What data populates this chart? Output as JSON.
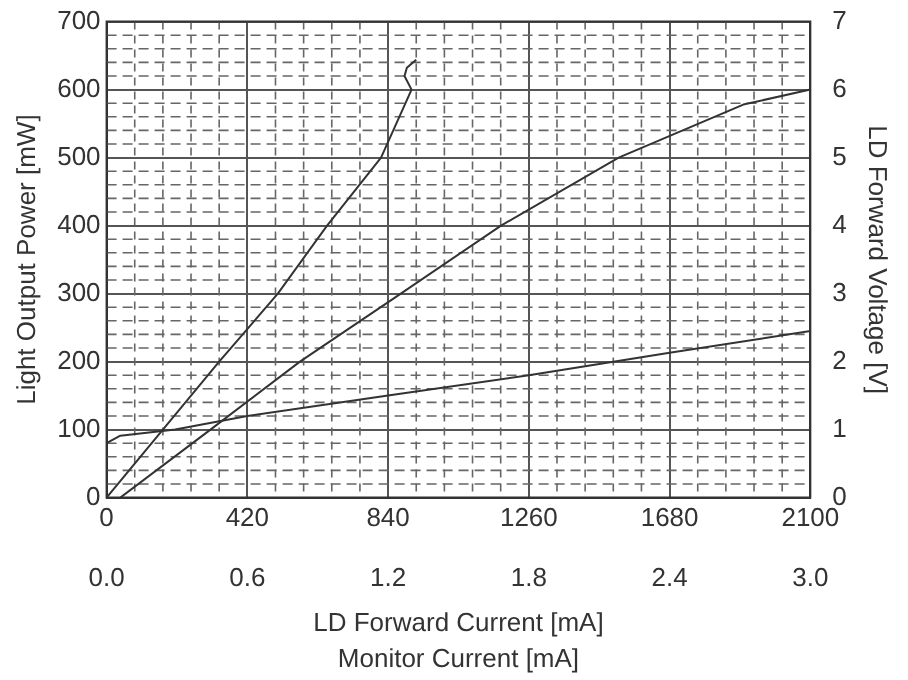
{
  "chart_data": {
    "type": "line",
    "xlabel": "LD Forward Current [mA]",
    "x2label": "Monitor Current [mA]",
    "ylabel": "Light Output Power [mW]",
    "y2label": "LD Forward Voltage [V]",
    "xlim": [
      0,
      2100
    ],
    "xticks": [
      0,
      420,
      840,
      1260,
      1680,
      2100
    ],
    "x2lim": [
      0,
      3
    ],
    "x2ticks": [
      {
        "value": 0,
        "label": "0.0"
      },
      {
        "value": 0.6,
        "label": "0.6"
      },
      {
        "value": 1.2,
        "label": "1.2"
      },
      {
        "value": 1.8,
        "label": "1.8"
      },
      {
        "value": 2.4,
        "label": "2.4"
      },
      {
        "value": 3,
        "label": "3.0"
      }
    ],
    "ylim": [
      0,
      700
    ],
    "yticks": [
      0,
      100,
      200,
      300,
      400,
      500,
      600,
      700
    ],
    "y2lim": [
      0,
      7
    ],
    "y2ticks": [
      0,
      1,
      2,
      3,
      4,
      5,
      6,
      7
    ],
    "grid": true,
    "marker": "none",
    "line_style": "solid",
    "series": [
      {
        "color": "#333333",
        "axis": "x2",
        "x": [
          0,
          0.24,
          0.48,
          0.73,
          0.94,
          1.17,
          1.3,
          1.27,
          1.28,
          1.32
        ],
        "values": [
          0,
          100,
          200,
          300,
          400,
          500,
          600,
          620,
          632,
          644
        ]
      },
      {
        "color": "#333333",
        "x": [
          41,
          310,
          577,
          878,
          1177,
          1528,
          1900,
          2100
        ],
        "values": [
          0,
          100,
          200,
          300,
          400,
          500,
          578,
          600
        ]
      },
      {
        "color": "#333333",
        "axis": "y2",
        "x": [
          0,
          41,
          205,
          420,
          840,
          1260,
          1680,
          2100
        ],
        "values": [
          0.8,
          0.91,
          1.0,
          1.2,
          1.5,
          1.8,
          2.13,
          2.45
        ]
      }
    ]
  }
}
